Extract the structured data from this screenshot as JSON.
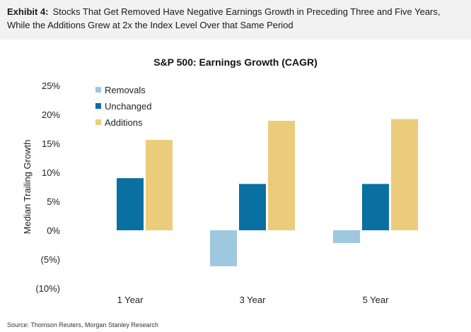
{
  "header": {
    "label": "Exhibit 4:",
    "line1": "Stocks That Get Removed Have Negative Earnings Growth in Preceding Three and Five Years,",
    "line2": "While the Additions Grew at 2x the Index Level Over that Same Period"
  },
  "source": "Source: Thomson Reuters, Morgan Stanley Research",
  "chart_data": {
    "type": "bar",
    "title": "S&P 500: Earnings Growth (CAGR)",
    "xlabel": "",
    "ylabel": "Median Trailing Growth",
    "ylim": [
      -10,
      25
    ],
    "yticks": [
      25,
      20,
      15,
      10,
      5,
      0,
      -5,
      -10
    ],
    "ytick_labels": [
      "25%",
      "20%",
      "15%",
      "10%",
      "5%",
      "0%",
      "(5%)",
      "(10%)"
    ],
    "categories": [
      "1 Year",
      "3 Year",
      "5 Year"
    ],
    "series": [
      {
        "name": "Removals",
        "color": "#9dc8e0",
        "values": [
          null,
          -6.2,
          -2.2
        ]
      },
      {
        "name": "Unchanged",
        "color": "#0a6fa1",
        "values": [
          9.0,
          8.0,
          8.0
        ]
      },
      {
        "name": "Additions",
        "color": "#ebcc7a",
        "values": [
          15.6,
          18.9,
          19.2
        ]
      }
    ],
    "legend_position": "top-left",
    "grid": false
  }
}
